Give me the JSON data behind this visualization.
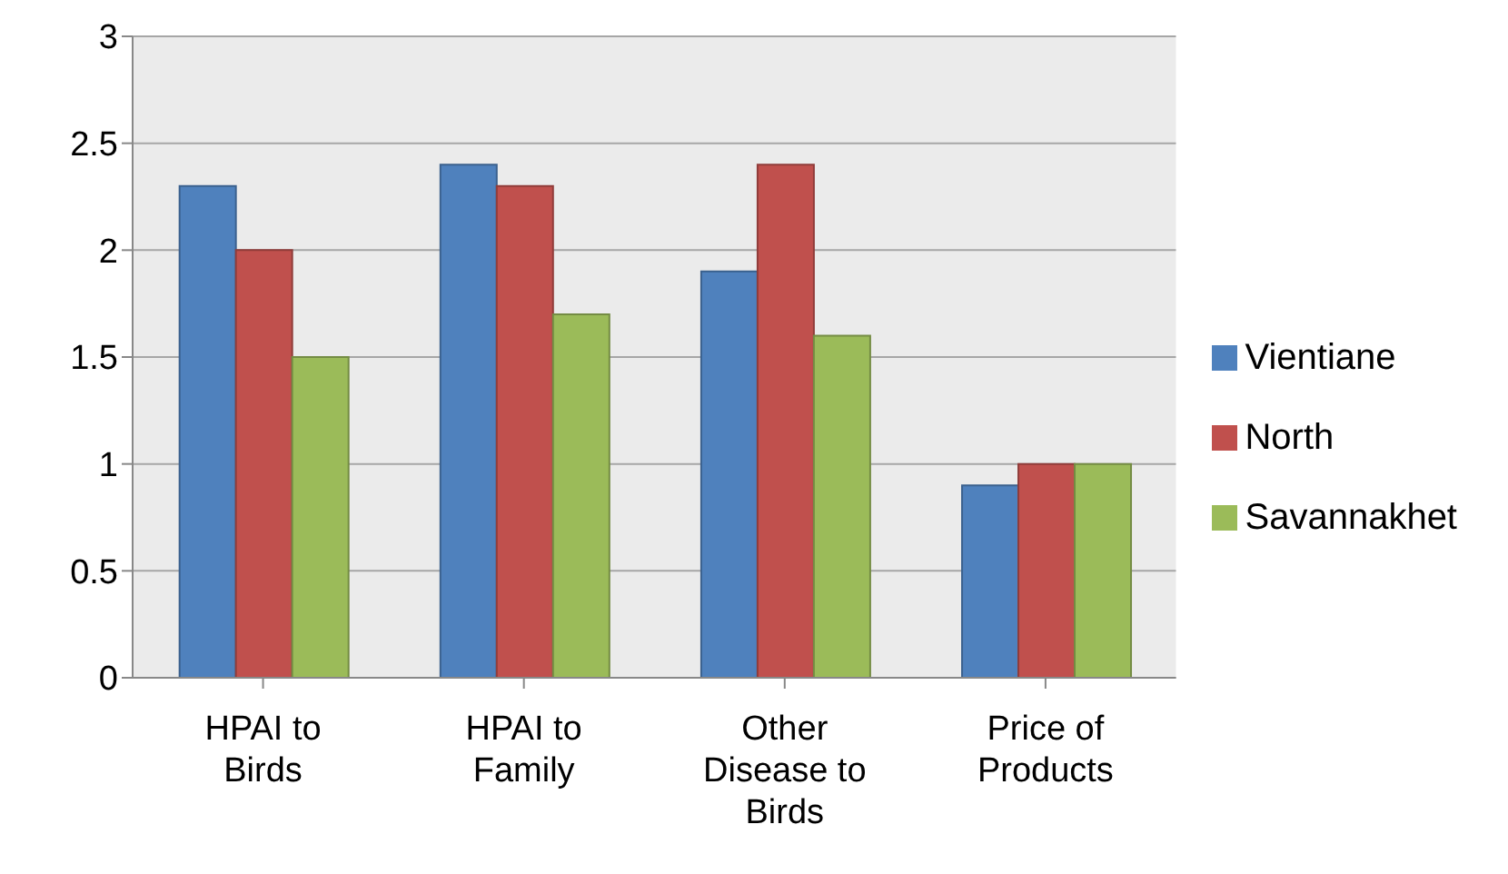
{
  "chart_data": {
    "type": "bar",
    "categories": [
      "HPAI to Birds",
      "HPAI to Family",
      "Other Disease to Birds",
      "Price of Products"
    ],
    "series": [
      {
        "name": "Vientiane",
        "color": "#4f81bd",
        "values": [
          2.3,
          2.4,
          1.9,
          0.9
        ]
      },
      {
        "name": "North",
        "color": "#c0504d",
        "values": [
          2.0,
          2.3,
          2.4,
          1.0
        ]
      },
      {
        "name": "Savannakhet",
        "color": "#9bbb59",
        "values": [
          1.5,
          1.7,
          1.6,
          1.0
        ]
      }
    ],
    "ylim": [
      0,
      3
    ],
    "yticks": [
      0,
      0.5,
      1,
      1.5,
      2,
      2.5,
      3
    ],
    "grid": "y",
    "legend": "right"
  }
}
